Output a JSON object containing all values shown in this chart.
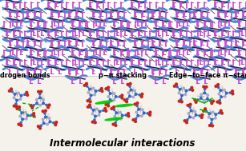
{
  "title": "Intermolecular interactions",
  "label1": "Hydrogen bonds",
  "label2": "p−π stacking",
  "label3": "Edge−to−face π−stacking",
  "bg_color": "#f0ede8",
  "top_bg": "#ffffff",
  "bot_bg": "#f5f2ec",
  "title_fontsize": 8.5,
  "label_fontsize": 5.8,
  "blue": "#3366cc",
  "red": "#cc2211",
  "green": "#00cc00",
  "purple": "#cc44cc",
  "dark": "#222233",
  "white_atom": "#cccccc",
  "fig_width": 3.07,
  "fig_height": 1.89,
  "dpi": 100
}
